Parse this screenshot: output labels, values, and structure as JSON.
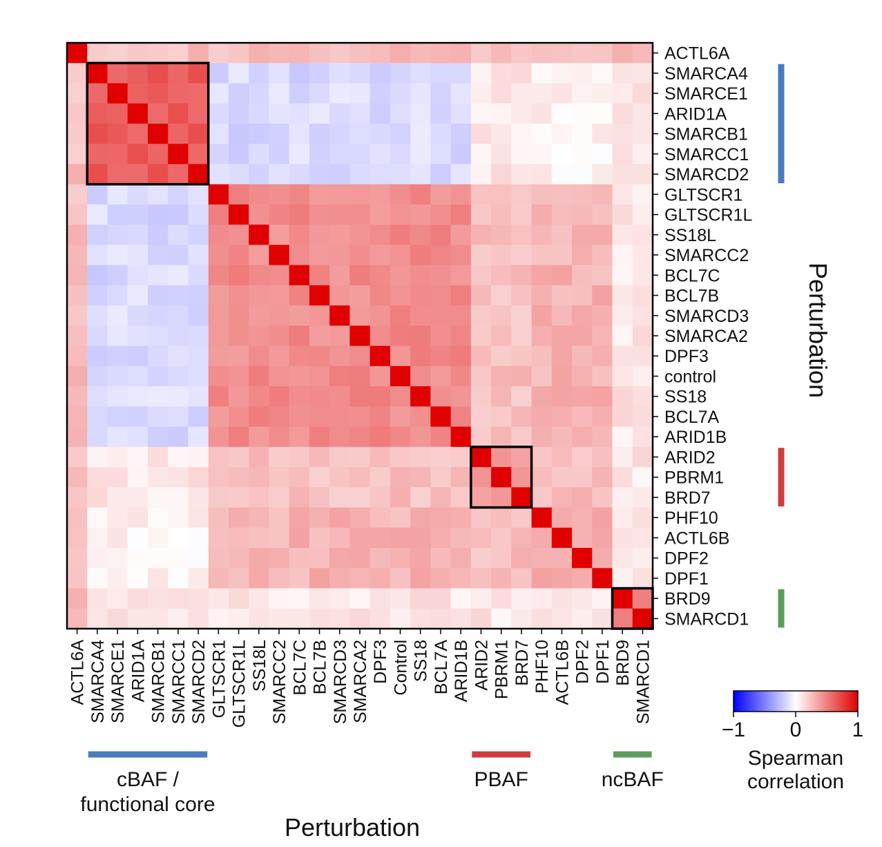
{
  "chart_data": {
    "type": "heatmap",
    "row_labels": [
      "ACTL6A",
      "SMARCA4",
      "SMARCE1",
      "ARID1A",
      "SMARCB1",
      "SMARCC1",
      "SMARCD2",
      "GLTSCR1",
      "GLTSCR1L",
      "SS18L",
      "SMARCC2",
      "BCL7C",
      "BCL7B",
      "SMARCD3",
      "SMARCA2",
      "DPF3",
      "control",
      "SS18",
      "BCL7A",
      "ARID1B",
      "ARID2",
      "PBRM1",
      "BRD7",
      "PHF10",
      "ACTL6B",
      "DPF2",
      "DPF1",
      "BRD9",
      "SMARCD1"
    ],
    "column_labels": [
      "ACTL6A",
      "SMARCA4",
      "SMARCE1",
      "ARID1A",
      "SMARCB1",
      "SMARCC1",
      "SMARCD2",
      "GLTSCR1",
      "GLTSCR1L",
      "SS18L",
      "SMARCC2",
      "BCL7C",
      "BCL7B",
      "SMARCD3",
      "SMARCA2",
      "DPF3",
      "Control",
      "SS18",
      "BCL7A",
      "ARID1B",
      "ARID2",
      "PBRM1",
      "BRD7",
      "PHF10",
      "ACTL6B",
      "DPF2",
      "DPF1",
      "BRD9",
      "SMARCD1"
    ],
    "group_blocks": [
      {
        "start": 0,
        "end": 6,
        "value": 0.65
      },
      {
        "start": 7,
        "end": 19,
        "value": 0.45
      },
      {
        "start": 20,
        "end": 22,
        "value": 0.4
      },
      {
        "start": 23,
        "end": 26,
        "value": 0.3
      },
      {
        "start": 27,
        "end": 28,
        "value": 0.5
      }
    ],
    "block_pair_values": [
      [
        0.65,
        -0.15,
        0.1,
        0.05,
        0.1
      ],
      [
        -0.15,
        0.45,
        0.25,
        0.3,
        0.1
      ],
      [
        0.1,
        0.25,
        0.4,
        0.25,
        0.1
      ],
      [
        0.05,
        0.3,
        0.25,
        0.3,
        0.1
      ],
      [
        0.1,
        0.1,
        0.1,
        0.1,
        0.5
      ]
    ],
    "actl6a_row_values": 0.25,
    "diagonal_value": 1,
    "highlight_boxes": [
      {
        "name": "cBAF",
        "start": 1,
        "end": 6
      },
      {
        "name": "PBAF",
        "start": 20,
        "end": 22
      },
      {
        "name": "ncBAF",
        "start": 27,
        "end": 28
      }
    ],
    "groups": [
      {
        "label_line1": "cBAF /",
        "label_line2": "functional core",
        "start": 1,
        "end": 6,
        "color": "#4a7bbf"
      },
      {
        "label_line1": "PBAF",
        "label_line2": "",
        "start": 20,
        "end": 22,
        "color": "#d03c3c"
      },
      {
        "label_line1": "ncBAF",
        "label_line2": "",
        "start": 27,
        "end": 28,
        "color": "#5a9e5a"
      }
    ],
    "xlabel": "Perturbation",
    "ylabel": "Perturbation",
    "colorbar": {
      "label_line1": "Spearman",
      "label_line2": "correlation",
      "vmin": -1,
      "vmax": 1,
      "ticks": [
        {
          "value": -1,
          "label": "−1"
        },
        {
          "value": 0,
          "label": "0"
        },
        {
          "value": 1,
          "label": "1"
        }
      ],
      "colors": [
        "#0000ff",
        "#ffffff",
        "#e00000"
      ]
    }
  }
}
